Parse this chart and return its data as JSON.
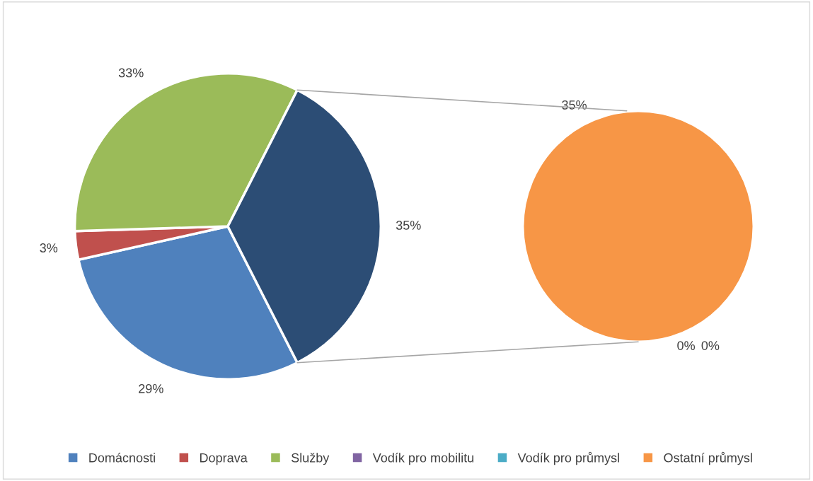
{
  "chart_data": [
    {
      "type": "pie",
      "categories": [
        "Domácnosti",
        "Doprava",
        "Služby",
        null
      ],
      "values": [
        29,
        3,
        33,
        35
      ],
      "colors": [
        "#4f81bd",
        "#c0504d",
        "#9bbb59",
        "#2c4d75"
      ],
      "value_labels": [
        "29%",
        "3%",
        "33%",
        "35%"
      ],
      "legend": "bottom"
    },
    {
      "type": "pie",
      "categories": [
        "Vodík pro mobilitu",
        "Vodík pro průmysl",
        "Ostatní průmysl"
      ],
      "values": [
        0,
        0,
        35
      ],
      "colors": [
        "#8064a2",
        "#4bacc6",
        "#f79646"
      ],
      "value_labels": [
        "0%",
        "0%",
        "35%"
      ],
      "legend": "bottom"
    }
  ]
}
